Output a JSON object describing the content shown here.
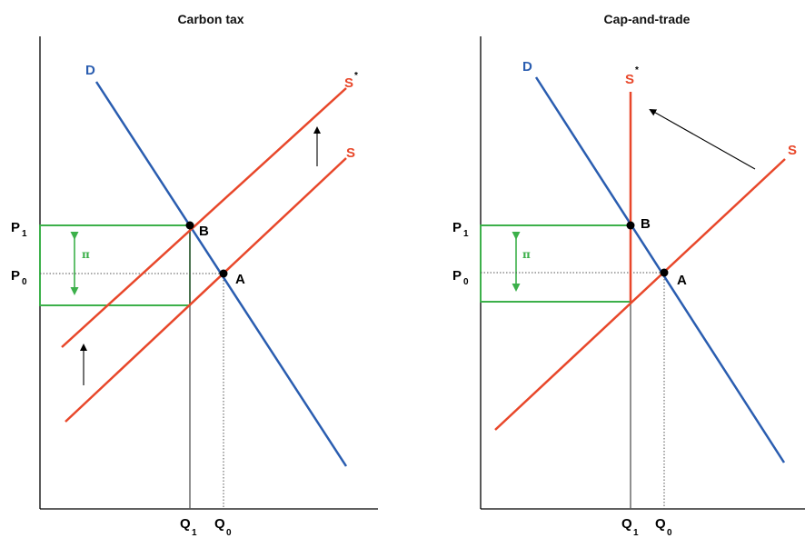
{
  "colors": {
    "demand": "#2a5db0",
    "supply": "#e8472a",
    "box": "#3cb04a",
    "axis": "#000000",
    "guide": "#555555"
  },
  "left": {
    "title": "Carbon tax",
    "demand_label": "D",
    "supply_label": "S",
    "supply_shift_label": "S",
    "star": "*",
    "p1_main": "P",
    "p1_sub": "1",
    "p0_main": "P",
    "p0_sub": "0",
    "q1_main": "Q",
    "q1_sub": "1",
    "q0_main": "Q",
    "q0_sub": "0",
    "point_b": "B",
    "point_a": "A",
    "wedge": "π"
  },
  "right": {
    "title": "Cap-and-trade",
    "demand_label": "D",
    "supply_label": "S",
    "supply_shift_label": "S",
    "star": "*",
    "p1_main": "P",
    "p1_sub": "1",
    "p0_main": "P",
    "p0_sub": "0",
    "q1_main": "Q",
    "q1_sub": "1",
    "q0_main": "Q",
    "q0_sub": "0",
    "point_b": "B",
    "point_a": "A",
    "wedge": "π"
  }
}
